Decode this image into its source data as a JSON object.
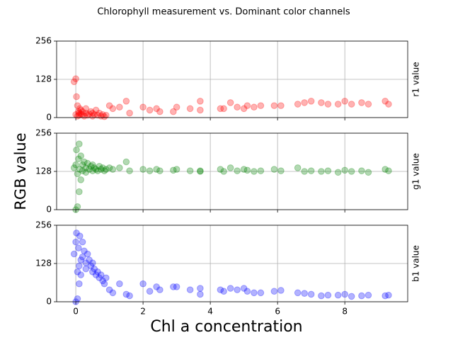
{
  "chart_data": {
    "type": "scatter",
    "title": "Chlorophyll measurement vs. Dominant color channels",
    "xlabel": "Chl a concentration",
    "ylabel": "RGB value",
    "xlim": [
      -0.57,
      9.87
    ],
    "xticks": [
      0,
      2,
      4,
      6,
      8
    ],
    "ylim": [
      0,
      256
    ],
    "yticks": [
      0,
      128,
      256
    ],
    "grid": true,
    "alpha": 0.3,
    "x": [
      -0.05,
      0.0,
      0.0,
      0.02,
      0.05,
      0.05,
      0.08,
      0.1,
      0.1,
      0.12,
      0.15,
      0.15,
      0.2,
      0.2,
      0.25,
      0.3,
      0.3,
      0.35,
      0.4,
      0.45,
      0.5,
      0.5,
      0.55,
      0.6,
      0.65,
      0.7,
      0.75,
      0.8,
      0.85,
      0.9,
      1.0,
      1.1,
      1.3,
      1.5,
      1.6,
      2.0,
      2.2,
      2.4,
      2.5,
      2.9,
      3.0,
      3.4,
      3.7,
      3.7,
      4.3,
      4.4,
      4.6,
      4.8,
      5.0,
      5.1,
      5.3,
      5.5,
      5.9,
      6.1,
      6.6,
      6.8,
      7.0,
      7.3,
      7.5,
      7.8,
      8.0,
      8.2,
      8.5,
      8.7,
      9.2,
      9.3
    ],
    "series": [
      {
        "name": "r1 value",
        "color": "red",
        "values": [
          120,
          10,
          130,
          70,
          5,
          40,
          20,
          15,
          8,
          30,
          12,
          25,
          10,
          20,
          5,
          15,
          30,
          8,
          12,
          20,
          5,
          15,
          10,
          25,
          8,
          15,
          5,
          10,
          3,
          8,
          40,
          30,
          35,
          55,
          15,
          35,
          25,
          30,
          20,
          20,
          35,
          30,
          25,
          55,
          30,
          30,
          50,
          35,
          30,
          40,
          35,
          40,
          40,
          40,
          45,
          50,
          55,
          50,
          45,
          45,
          55,
          45,
          50,
          45,
          55,
          45
        ]
      },
      {
        "name": "g1 value",
        "color": "green",
        "values": [
          140,
          0,
          150,
          200,
          10,
          120,
          170,
          220,
          60,
          135,
          180,
          100,
          150,
          130,
          160,
          140,
          125,
          155,
          135,
          145,
          130,
          150,
          140,
          135,
          130,
          145,
          135,
          140,
          130,
          135,
          140,
          135,
          140,
          160,
          130,
          135,
          130,
          135,
          130,
          132,
          135,
          130,
          128,
          130,
          135,
          128,
          140,
          130,
          135,
          132,
          128,
          130,
          135,
          130,
          140,
          128,
          130,
          128,
          130,
          125,
          132,
          128,
          130,
          125,
          135,
          130
        ]
      },
      {
        "name": "b1 value",
        "color": "blue",
        "values": [
          160,
          0,
          200,
          230,
          10,
          100,
          180,
          120,
          60,
          220,
          140,
          90,
          200,
          150,
          170,
          130,
          110,
          160,
          140,
          120,
          100,
          130,
          110,
          90,
          100,
          80,
          90,
          70,
          60,
          80,
          40,
          30,
          60,
          25,
          20,
          60,
          35,
          50,
          40,
          50,
          50,
          40,
          45,
          25,
          40,
          35,
          45,
          40,
          45,
          35,
          30,
          30,
          35,
          38,
          30,
          28,
          25,
          20,
          22,
          22,
          25,
          18,
          20,
          22,
          20,
          22
        ]
      }
    ]
  }
}
